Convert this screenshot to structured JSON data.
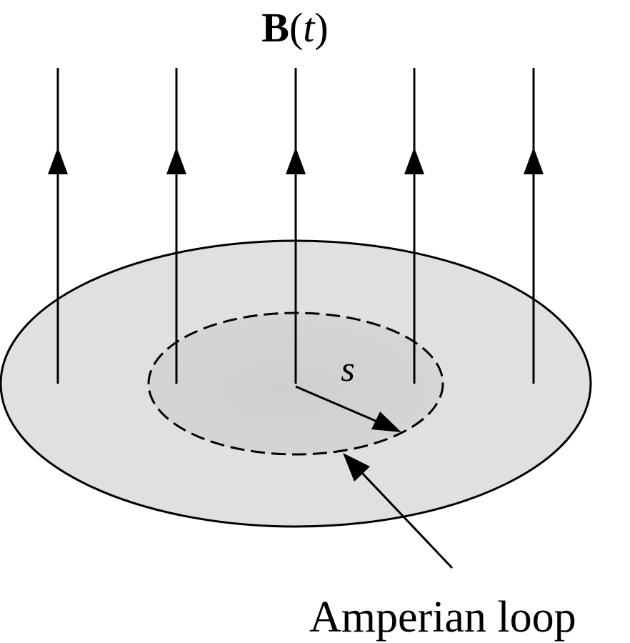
{
  "figure": {
    "field_label": {
      "symbol": "B",
      "open_paren": "(",
      "variable": "t",
      "close_paren": ")"
    },
    "radius_label": "s",
    "loop_label": "Amperian loop"
  },
  "colors": {
    "stroke": "#000000",
    "outer_disk_fill": "#e0e0e0",
    "inner_region_fill": "#d2d2d2",
    "background": "#ffffff"
  },
  "field_line_count": 5
}
